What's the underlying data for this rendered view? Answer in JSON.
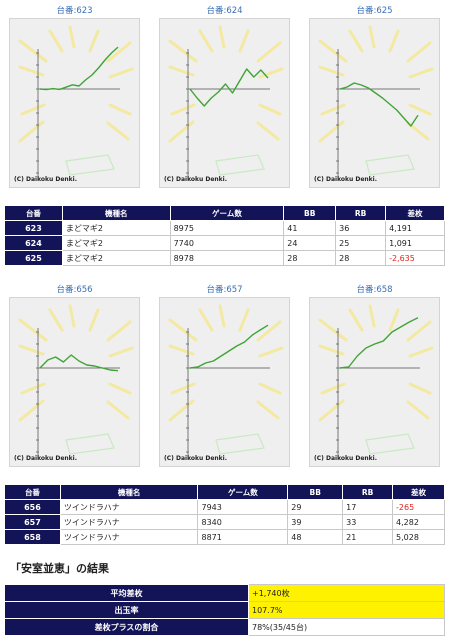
{
  "group1": {
    "units": [
      {
        "label": "台番:623",
        "copyright": "(C) Daikoku Denki."
      },
      {
        "label": "台番:624",
        "copyright": "(C) Daikoku Denki."
      },
      {
        "label": "台番:625",
        "copyright": "(C) Daikoku Denki."
      }
    ],
    "table": {
      "headers": [
        "台番",
        "機種名",
        "ゲーム数",
        "BB",
        "RB",
        "差枚"
      ],
      "rows": [
        {
          "no": "623",
          "machine": "まどマギ2",
          "games": "8975",
          "bb": "41",
          "rb": "36",
          "diff": "4,191"
        },
        {
          "no": "624",
          "machine": "まどマギ2",
          "games": "7740",
          "bb": "24",
          "rb": "25",
          "diff": "1,091"
        },
        {
          "no": "625",
          "machine": "まどマギ2",
          "games": "8978",
          "bb": "28",
          "rb": "28",
          "diff": "-2,635"
        }
      ]
    }
  },
  "group2": {
    "units": [
      {
        "label": "台番:656",
        "copyright": "(C) Daikoku Denki."
      },
      {
        "label": "台番:657",
        "copyright": "(C) Daikoku Denki."
      },
      {
        "label": "台番:658",
        "copyright": "(C) Daikoku Denki."
      }
    ],
    "table": {
      "headers": [
        "台番",
        "機種名",
        "ゲーム数",
        "BB",
        "RB",
        "差枚"
      ],
      "rows": [
        {
          "no": "656",
          "machine": "ツインドラハナ",
          "games": "7943",
          "bb": "29",
          "rb": "17",
          "diff": "-265"
        },
        {
          "no": "657",
          "machine": "ツインドラハナ",
          "games": "8340",
          "bb": "39",
          "rb": "33",
          "diff": "4,282"
        },
        {
          "no": "658",
          "machine": "ツインドラハナ",
          "games": "8871",
          "bb": "48",
          "rb": "21",
          "diff": "5,028"
        }
      ]
    }
  },
  "summary": {
    "title": "「安室並恵」の結果",
    "rows": [
      {
        "label": "平均差枚",
        "value": "+1,740枚",
        "highlight": true
      },
      {
        "label": "出玉率",
        "value": "107.7%",
        "highlight": true
      },
      {
        "label": "差枚プラスの割合",
        "value": "78%(35/45台)",
        "highlight": false
      }
    ]
  },
  "colors": {
    "header_bg": "#131358",
    "line": "#3fa535",
    "negative": "#e0261b",
    "highlight": "#fff200"
  },
  "chart_data": [
    {
      "type": "line",
      "unit": "623",
      "end_value": 4191,
      "trend": [
        0,
        -60,
        40,
        -40,
        180,
        420,
        300,
        900,
        1400,
        2100,
        2900,
        3600,
        4191
      ]
    },
    {
      "type": "line",
      "unit": "624",
      "end_value": 1091,
      "trend": [
        0,
        -900,
        -1700,
        -900,
        -300,
        500,
        -400,
        800,
        2000,
        1200,
        1900,
        1091
      ]
    },
    {
      "type": "line",
      "unit": "625",
      "end_value": -2635,
      "trend": [
        0,
        200,
        600,
        400,
        100,
        -400,
        -900,
        -1500,
        -2100,
        -2900,
        -3700,
        -2635
      ]
    },
    {
      "type": "line",
      "unit": "656",
      "end_value": -265,
      "trend": [
        0,
        800,
        1100,
        600,
        1300,
        700,
        300,
        200,
        0,
        -200,
        -265
      ]
    },
    {
      "type": "line",
      "unit": "657",
      "end_value": 4282,
      "trend": [
        0,
        100,
        500,
        700,
        1200,
        1700,
        2200,
        2600,
        3300,
        3800,
        4282
      ]
    },
    {
      "type": "line",
      "unit": "658",
      "end_value": 5028,
      "trend": [
        0,
        100,
        1200,
        2000,
        2400,
        2700,
        3600,
        4100,
        4600,
        5028
      ]
    }
  ]
}
